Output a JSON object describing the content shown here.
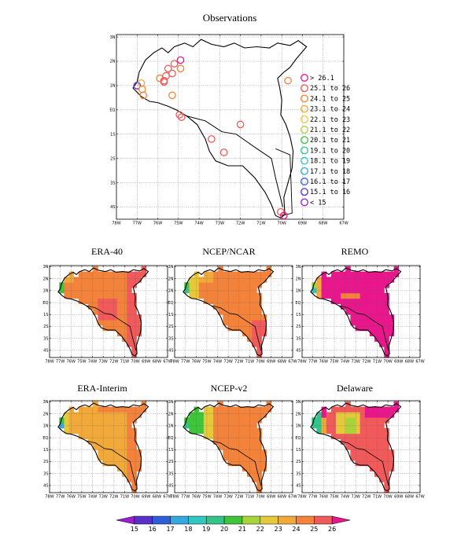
{
  "observations": {
    "title": "Observations",
    "legend": [
      {
        "label": "> 26.1",
        "color": "#e8178c"
      },
      {
        "label": "25.1 to 26",
        "color": "#f05a5a"
      },
      {
        "label": "24.1 to 25",
        "color": "#f3833a"
      },
      {
        "label": "23.1 to 24",
        "color": "#f1a93a"
      },
      {
        "label": "22.1 to 23",
        "color": "#e6c93a"
      },
      {
        "label": "21.1 to 22",
        "color": "#a8d43a"
      },
      {
        "label": "20.1 to 21",
        "color": "#3fc43a"
      },
      {
        "label": "19.1 to 20",
        "color": "#33c48a"
      },
      {
        "label": "18.1 to 19",
        "color": "#30c8c0"
      },
      {
        "label": "17.1 to 18",
        "color": "#35a8e0"
      },
      {
        "label": "16.1 to 17",
        "color": "#2f5fd8"
      },
      {
        "label": "15.1 to 16",
        "color": "#5a30c8"
      },
      {
        "label": "< 15",
        "color": "#9b1fd0"
      }
    ],
    "stations": [
      {
        "lon": -77.0,
        "lat": 1.0,
        "cat": 11
      },
      {
        "lon": -76.8,
        "lat": 1.1,
        "cat": 3
      },
      {
        "lon": -76.75,
        "lat": 0.85,
        "cat": 2
      },
      {
        "lon": -76.7,
        "lat": 0.6,
        "cat": 2
      },
      {
        "lon": -75.9,
        "lat": 1.3,
        "cat": 2
      },
      {
        "lon": -75.7,
        "lat": 1.2,
        "cat": 1
      },
      {
        "lon": -75.6,
        "lat": 1.4,
        "cat": 1
      },
      {
        "lon": -75.5,
        "lat": 1.7,
        "cat": 1
      },
      {
        "lon": -75.7,
        "lat": 1.15,
        "cat": 1
      },
      {
        "lon": -75.3,
        "lat": 1.5,
        "cat": 1
      },
      {
        "lon": -75.2,
        "lat": 1.9,
        "cat": 1
      },
      {
        "lon": -74.9,
        "lat": 1.7,
        "cat": 2
      },
      {
        "lon": -74.9,
        "lat": 2.05,
        "cat": 0
      },
      {
        "lon": -75.3,
        "lat": 0.6,
        "cat": 2
      },
      {
        "lon": -74.95,
        "lat": -0.2,
        "cat": 1
      },
      {
        "lon": -74.85,
        "lat": -0.3,
        "cat": 1
      },
      {
        "lon": -72.0,
        "lat": -0.6,
        "cat": 1
      },
      {
        "lon": -73.4,
        "lat": -1.2,
        "cat": 1
      },
      {
        "lon": -72.8,
        "lat": -1.75,
        "cat": 1
      },
      {
        "lon": -69.7,
        "lat": 1.2,
        "cat": 2
      },
      {
        "lon": -70.05,
        "lat": -4.2,
        "cat": 1
      },
      {
        "lon": -69.9,
        "lat": -4.35,
        "cat": 0
      }
    ]
  },
  "axes": {
    "lon_labels": [
      "78W",
      "77W",
      "76W",
      "75W",
      "74W",
      "73W",
      "72W",
      "71W",
      "70W",
      "69W",
      "68W",
      "67W"
    ],
    "lat_labels": [
      "3N",
      "2N",
      "1N",
      "EQ",
      "1S",
      "2S",
      "3S",
      "4S"
    ]
  },
  "panels": [
    {
      "title": "ERA-40"
    },
    {
      "title": "NCEP/NCAR"
    },
    {
      "title": "REMO"
    },
    {
      "title": "ERA-Interim"
    },
    {
      "title": "NCEP-v2"
    },
    {
      "title": "Delaware"
    }
  ],
  "colorbar": {
    "labels": [
      "15",
      "16",
      "17",
      "18",
      "19",
      "20",
      "21",
      "22",
      "23",
      "24",
      "25",
      "26"
    ],
    "colors": [
      "#9b1fd0",
      "#5a30c8",
      "#2f5fd8",
      "#35a8e0",
      "#30c8c0",
      "#33c48a",
      "#3fc43a",
      "#a8d43a",
      "#e6c93a",
      "#f1a93a",
      "#f3833a",
      "#f05a5a",
      "#e8178c"
    ]
  }
}
